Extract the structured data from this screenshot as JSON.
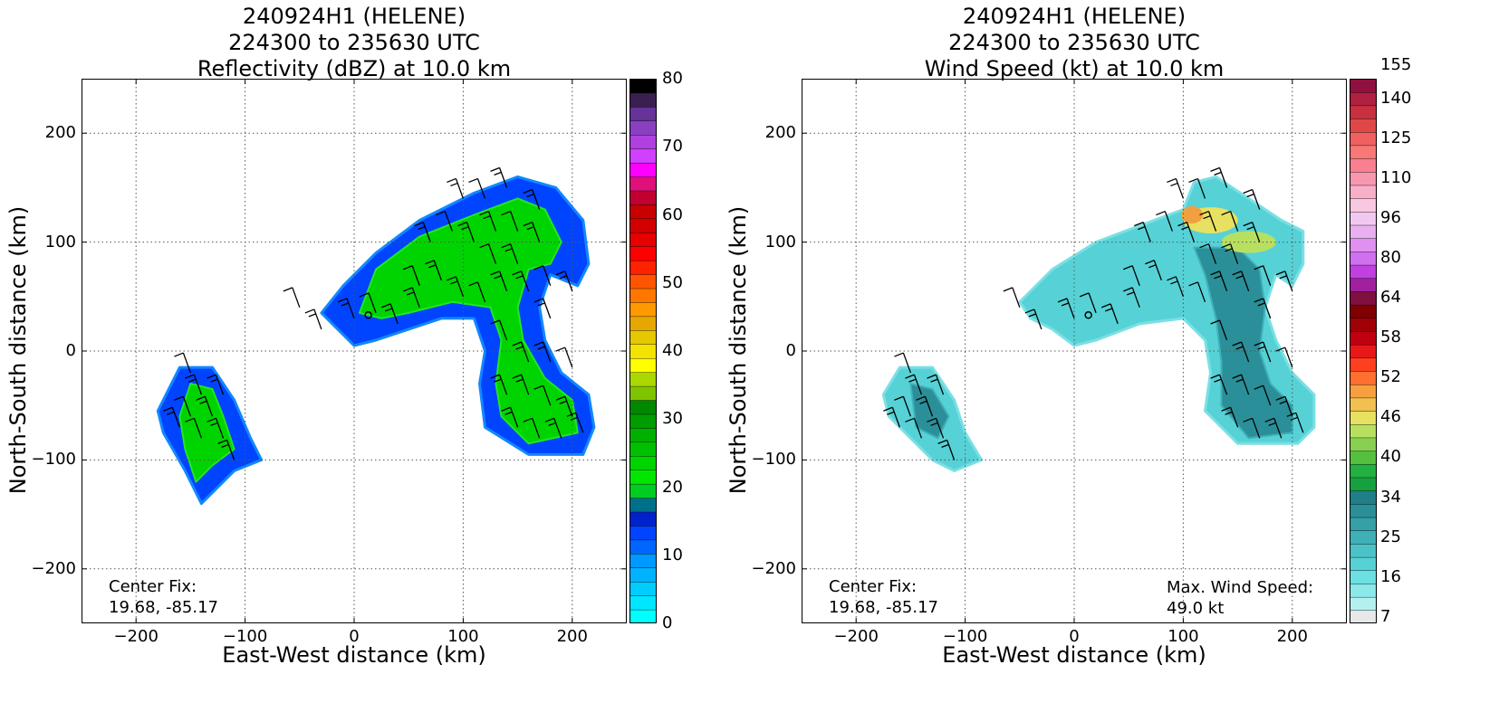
{
  "chart_data": [
    {
      "type": "heatmap",
      "title": [
        "240924H1 (HELENE)",
        "224300 to 235630 UTC",
        "Reflectivity (dBZ) at 10.0 km"
      ],
      "xlabel": "East-West distance (km)",
      "ylabel": "North-South distance (km)",
      "xlim": [
        -250,
        250
      ],
      "ylim": [
        -250,
        250
      ],
      "xticks": [
        -200,
        -100,
        0,
        100,
        200
      ],
      "yticks": [
        -200,
        -100,
        0,
        100,
        200
      ],
      "xtick_labels": [
        "−200",
        "−100",
        "0",
        "100",
        "200"
      ],
      "ytick_labels": [
        "−200",
        "−100",
        "0",
        "100",
        "200"
      ],
      "grid": true,
      "center_fix_label": "Center Fix:",
      "center_fix_value": "19.68, -85.17",
      "center_fix": [
        13,
        33
      ],
      "colorbar": {
        "colors": [
          "#00ffff",
          "#00e6ff",
          "#00ccff",
          "#00b3ff",
          "#0099ff",
          "#0066ff",
          "#0044ff",
          "#0022cc",
          "#00708a",
          "#00cc22",
          "#00e600",
          "#00d400",
          "#00c000",
          "#00b000",
          "#009c00",
          "#008800",
          "#7fc400",
          "#aad800",
          "#ffff00",
          "#f2e400",
          "#e6c800",
          "#e6a800",
          "#ff9900",
          "#ff7700",
          "#ff5500",
          "#ff2200",
          "#ff0000",
          "#e60000",
          "#d40000",
          "#c80000",
          "#c00030",
          "#e0107a",
          "#ff00ff",
          "#d040ff",
          "#b040e0",
          "#8840c0",
          "#663399",
          "#3a2050",
          "#000000"
        ],
        "tick_values": [
          0,
          10,
          20,
          30,
          40,
          50,
          60,
          70,
          80
        ],
        "tick_labels": [
          "0",
          "10",
          "20",
          "30",
          "40",
          "50",
          "60",
          "70",
          "80"
        ],
        "vmin": 0,
        "vmax": 80
      },
      "echo_regions": [
        {
          "name": "main band",
          "polygon": [
            [
              -10,
              60
            ],
            [
              20,
              90
            ],
            [
              60,
              120
            ],
            [
              110,
              145
            ],
            [
              150,
              160
            ],
            [
              185,
              150
            ],
            [
              210,
              120
            ],
            [
              215,
              80
            ],
            [
              205,
              60
            ],
            [
              180,
              70
            ],
            [
              170,
              40
            ],
            [
              175,
              10
            ],
            [
              190,
              -20
            ],
            [
              215,
              -40
            ],
            [
              220,
              -70
            ],
            [
              210,
              -95
            ],
            [
              160,
              -95
            ],
            [
              120,
              -70
            ],
            [
              115,
              -30
            ],
            [
              120,
              0
            ],
            [
              110,
              30
            ],
            [
              80,
              30
            ],
            [
              50,
              20
            ],
            [
              20,
              10
            ],
            [
              0,
              5
            ],
            [
              -15,
              20
            ],
            [
              -30,
              35
            ]
          ],
          "inner": [
            [
              20,
              75
            ],
            [
              60,
              105
            ],
            [
              110,
              125
            ],
            [
              150,
              140
            ],
            [
              175,
              130
            ],
            [
              190,
              100
            ],
            [
              180,
              80
            ],
            [
              160,
              75
            ],
            [
              150,
              40
            ],
            [
              155,
              10
            ],
            [
              175,
              -25
            ],
            [
              200,
              -45
            ],
            [
              205,
              -75
            ],
            [
              160,
              -85
            ],
            [
              135,
              -60
            ],
            [
              130,
              -30
            ],
            [
              135,
              10
            ],
            [
              125,
              40
            ],
            [
              90,
              45
            ],
            [
              50,
              35
            ],
            [
              25,
              30
            ],
            [
              5,
              35
            ]
          ]
        },
        {
          "name": "southwest cell",
          "polygon": [
            [
              -160,
              -15
            ],
            [
              -130,
              -15
            ],
            [
              -110,
              -45
            ],
            [
              -95,
              -80
            ],
            [
              -85,
              -100
            ],
            [
              -110,
              -110
            ],
            [
              -140,
              -140
            ],
            [
              -155,
              -110
            ],
            [
              -175,
              -75
            ],
            [
              -180,
              -55
            ]
          ],
          "inner": [
            [
              -150,
              -30
            ],
            [
              -130,
              -35
            ],
            [
              -120,
              -60
            ],
            [
              -110,
              -90
            ],
            [
              -130,
              -105
            ],
            [
              -145,
              -120
            ],
            [
              -155,
              -90
            ],
            [
              -160,
              -60
            ]
          ]
        }
      ],
      "wind_barbs": [
        [
          -50,
          40
        ],
        [
          -30,
          20
        ],
        [
          0,
          30
        ],
        [
          20,
          35
        ],
        [
          40,
          25
        ],
        [
          60,
          40
        ],
        [
          60,
          60
        ],
        [
          80,
          65
        ],
        [
          100,
          50
        ],
        [
          120,
          45
        ],
        [
          140,
          55
        ],
        [
          160,
          55
        ],
        [
          180,
          60
        ],
        [
          200,
          55
        ],
        [
          70,
          100
        ],
        [
          90,
          110
        ],
        [
          110,
          100
        ],
        [
          130,
          110
        ],
        [
          150,
          110
        ],
        [
          170,
          100
        ],
        [
          100,
          140
        ],
        [
          120,
          140
        ],
        [
          140,
          150
        ],
        [
          170,
          130
        ],
        [
          130,
          80
        ],
        [
          150,
          80
        ],
        [
          180,
          30
        ],
        [
          140,
          10
        ],
        [
          160,
          -10
        ],
        [
          180,
          -10
        ],
        [
          200,
          -15
        ],
        [
          140,
          -40
        ],
        [
          160,
          -40
        ],
        [
          180,
          -50
        ],
        [
          200,
          -60
        ],
        [
          150,
          -70
        ],
        [
          170,
          -80
        ],
        [
          190,
          -80
        ],
        [
          210,
          -75
        ],
        [
          -150,
          -20
        ],
        [
          -140,
          -40
        ],
        [
          -120,
          -40
        ],
        [
          -150,
          -60
        ],
        [
          -130,
          -60
        ],
        [
          -160,
          -70
        ],
        [
          -140,
          -80
        ],
        [
          -120,
          -80
        ],
        [
          -110,
          -100
        ]
      ]
    },
    {
      "type": "heatmap",
      "title": [
        "240924H1 (HELENE)",
        "224300 to 235630 UTC",
        "Wind Speed (kt) at 10.0 km"
      ],
      "xlabel": "East-West distance (km)",
      "ylabel": "North-South distance (km)",
      "xlim": [
        -250,
        250
      ],
      "ylim": [
        -250,
        250
      ],
      "xticks": [
        -200,
        -100,
        0,
        100,
        200
      ],
      "yticks": [
        -200,
        -100,
        0,
        100,
        200
      ],
      "xtick_labels": [
        "−200",
        "−100",
        "0",
        "100",
        "200"
      ],
      "ytick_labels": [
        "−200",
        "−100",
        "0",
        "100",
        "200"
      ],
      "grid": true,
      "center_fix_label": "Center Fix:",
      "center_fix_value": "19.68, -85.17",
      "center_fix": [
        13,
        33
      ],
      "max_wind_label": "Max. Wind Speed:",
      "max_wind_value": "49.0 kt",
      "colorbar": {
        "colors": [
          "#e8e8e8",
          "#b4f0f0",
          "#8ce8ea",
          "#6cdfe2",
          "#56d2d6",
          "#4cc2c8",
          "#40b0b8",
          "#35a0a8",
          "#2a8f98",
          "#207e88",
          "#16a040",
          "#22b040",
          "#55c040",
          "#88d050",
          "#b8e060",
          "#e8e060",
          "#f0c050",
          "#f8a040",
          "#ff7030",
          "#ff4020",
          "#e81818",
          "#c00010",
          "#a00008",
          "#800000",
          "#801040",
          "#a020a0",
          "#c040e0",
          "#d070f0",
          "#e090f0",
          "#e8b0f0",
          "#f0c8f0",
          "#f8c8e0",
          "#f8b0c8",
          "#f898b0",
          "#f88090",
          "#f87878",
          "#f06060",
          "#e04848",
          "#c83040",
          "#b02040",
          "#901040"
        ],
        "tick_labels": [
          "7",
          "16",
          "25",
          "34",
          "40",
          "46",
          "52",
          "58",
          "64",
          "80",
          "96",
          "110",
          "125",
          "140",
          "155"
        ],
        "tick_index": [
          0,
          3,
          6,
          9,
          12,
          15,
          18,
          21,
          24,
          27,
          30,
          33,
          36,
          39,
          41.5
        ]
      },
      "echo_regions": [
        {
          "name": "main band",
          "polygon": [
            [
              -50,
              45
            ],
            [
              -20,
              75
            ],
            [
              20,
              100
            ],
            [
              60,
              115
            ],
            [
              100,
              130
            ],
            [
              110,
              155
            ],
            [
              130,
              160
            ],
            [
              160,
              140
            ],
            [
              190,
              120
            ],
            [
              210,
              110
            ],
            [
              210,
              80
            ],
            [
              200,
              60
            ],
            [
              185,
              70
            ],
            [
              175,
              40
            ],
            [
              185,
              10
            ],
            [
              200,
              -20
            ],
            [
              220,
              -40
            ],
            [
              220,
              -70
            ],
            [
              205,
              -85
            ],
            [
              150,
              -85
            ],
            [
              120,
              -55
            ],
            [
              125,
              -20
            ],
            [
              120,
              10
            ],
            [
              100,
              30
            ],
            [
              60,
              25
            ],
            [
              20,
              10
            ],
            [
              0,
              5
            ],
            [
              -20,
              20
            ],
            [
              -40,
              30
            ]
          ],
          "inner": [
            [
              110,
              95
            ],
            [
              150,
              95
            ],
            [
              170,
              75
            ],
            [
              175,
              40
            ],
            [
              170,
              0
            ],
            [
              180,
              -30
            ],
            [
              200,
              -50
            ],
            [
              200,
              -75
            ],
            [
              160,
              -80
            ],
            [
              135,
              -50
            ],
            [
              135,
              -10
            ],
            [
              130,
              30
            ],
            [
              120,
              70
            ]
          ]
        },
        {
          "name": "southwest cell",
          "polygon": [
            [
              -160,
              -15
            ],
            [
              -130,
              -15
            ],
            [
              -110,
              -45
            ],
            [
              -100,
              -75
            ],
            [
              -85,
              -100
            ],
            [
              -110,
              -110
            ],
            [
              -130,
              -100
            ],
            [
              -150,
              -80
            ],
            [
              -170,
              -60
            ],
            [
              -175,
              -40
            ]
          ],
          "inner": [
            [
              -150,
              -30
            ],
            [
              -130,
              -35
            ],
            [
              -115,
              -60
            ],
            [
              -125,
              -80
            ],
            [
              -145,
              -70
            ]
          ]
        }
      ],
      "hot_spots": [
        {
          "center": [
            125,
            120
          ],
          "rx": 25,
          "ry": 12,
          "color": "#e8e060"
        },
        {
          "center": [
            160,
            100
          ],
          "rx": 25,
          "ry": 10,
          "color": "#b8e060"
        },
        {
          "center": [
            108,
            125
          ],
          "rx": 10,
          "ry": 8,
          "color": "#f0a040"
        }
      ],
      "wind_barbs": [
        [
          -50,
          40
        ],
        [
          -30,
          20
        ],
        [
          0,
          30
        ],
        [
          20,
          35
        ],
        [
          40,
          25
        ],
        [
          60,
          40
        ],
        [
          60,
          60
        ],
        [
          80,
          65
        ],
        [
          100,
          50
        ],
        [
          120,
          45
        ],
        [
          140,
          55
        ],
        [
          160,
          55
        ],
        [
          180,
          60
        ],
        [
          200,
          55
        ],
        [
          70,
          100
        ],
        [
          90,
          110
        ],
        [
          110,
          100
        ],
        [
          130,
          110
        ],
        [
          150,
          110
        ],
        [
          170,
          100
        ],
        [
          100,
          140
        ],
        [
          120,
          140
        ],
        [
          140,
          150
        ],
        [
          170,
          130
        ],
        [
          130,
          80
        ],
        [
          150,
          80
        ],
        [
          180,
          30
        ],
        [
          140,
          10
        ],
        [
          160,
          -10
        ],
        [
          180,
          -10
        ],
        [
          200,
          -15
        ],
        [
          140,
          -40
        ],
        [
          160,
          -40
        ],
        [
          180,
          -50
        ],
        [
          200,
          -60
        ],
        [
          150,
          -70
        ],
        [
          170,
          -80
        ],
        [
          190,
          -80
        ],
        [
          210,
          -75
        ],
        [
          -150,
          -20
        ],
        [
          -140,
          -40
        ],
        [
          -120,
          -40
        ],
        [
          -150,
          -60
        ],
        [
          -130,
          -60
        ],
        [
          -160,
          -70
        ],
        [
          -140,
          -80
        ],
        [
          -120,
          -80
        ],
        [
          -110,
          -100
        ]
      ]
    }
  ]
}
